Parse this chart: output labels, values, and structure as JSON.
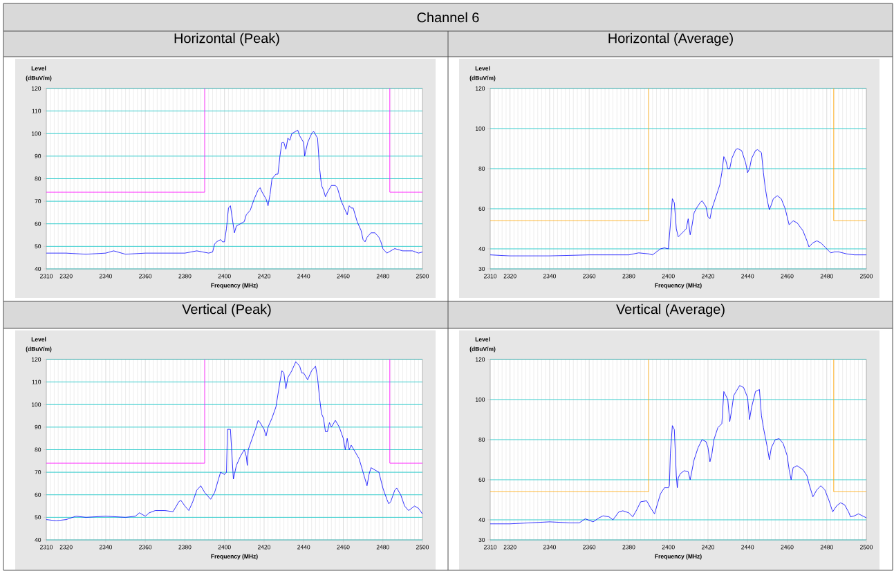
{
  "chart_data": [
    {
      "type": "line",
      "title": "Horizontal (Peak)",
      "annotations": [
        "Channel 6"
      ],
      "xlabel": "Frequency (MHz)",
      "ylabel": "Level (dBuV/m)",
      "xlim": [
        2310,
        2500
      ],
      "ylim": [
        40,
        120
      ],
      "xticks": [
        2310,
        2320,
        2340,
        2360,
        2380,
        2400,
        2420,
        2440,
        2460,
        2480,
        2500
      ],
      "yticks": [
        40,
        50,
        60,
        70,
        80,
        90,
        100,
        110,
        120
      ],
      "grid": true,
      "series": [
        {
          "color": "#0000ff",
          "x": [
            2310,
            2320,
            2330,
            2340,
            2344,
            2350,
            2360,
            2370,
            2380,
            2386,
            2392,
            2394,
            2395,
            2396,
            2398,
            2399,
            2400,
            2401,
            2402,
            2403,
            2404,
            2405,
            2406,
            2408,
            2410,
            2411,
            2413,
            2415,
            2417,
            2418,
            2419,
            2421,
            2422,
            2423,
            2424,
            2426,
            2427,
            2428,
            2429,
            2430,
            2431,
            2432,
            2433,
            2434,
            2436,
            2437,
            2438,
            2440,
            2440.5,
            2442,
            2444,
            2445,
            2447,
            2448,
            2449,
            2450,
            2451,
            2452,
            2454,
            2456,
            2457,
            2459,
            2461,
            2462,
            2463,
            2464,
            2465,
            2467,
            2469,
            2470,
            2471,
            2472,
            2474,
            2476,
            2478,
            2479,
            2480,
            2482,
            2484,
            2486,
            2490,
            2495,
            2498,
            2500
          ],
          "values": [
            47,
            47,
            46.5,
            47,
            48,
            46.5,
            47,
            47,
            47,
            48,
            47,
            47.5,
            51,
            52,
            53,
            52,
            52,
            58,
            67,
            68,
            62,
            56,
            59,
            60,
            61,
            64,
            66,
            71,
            75,
            76,
            74,
            71,
            68,
            73,
            80,
            82,
            82,
            90,
            96,
            96,
            93,
            98,
            97,
            100,
            101,
            101.5,
            99,
            96,
            90,
            96,
            100,
            101,
            98,
            85,
            77,
            75,
            72,
            74,
            77,
            77,
            76,
            70,
            66,
            64,
            68,
            67,
            67,
            61,
            57,
            53,
            52,
            54,
            56,
            56,
            54,
            52,
            49,
            47,
            48,
            49,
            48,
            48,
            47,
            47.5
          ]
        },
        {
          "color": "#ff00ff",
          "x": [
            2310,
            2390,
            2390
          ],
          "values": [
            74,
            74,
            120
          ]
        },
        {
          "color": "#ff00ff",
          "x": [
            2483.5,
            2483.5,
            2500
          ],
          "values": [
            120,
            74,
            74
          ]
        }
      ]
    },
    {
      "type": "line",
      "title": "Horizontal (Average)",
      "xlabel": "Frequency (MHz)",
      "ylabel": "Level (dBuV/m)",
      "xlim": [
        2310,
        2500
      ],
      "ylim": [
        30,
        120
      ],
      "xticks": [
        2310,
        2320,
        2340,
        2360,
        2380,
        2400,
        2420,
        2440,
        2460,
        2480,
        2500
      ],
      "yticks": [
        30,
        40,
        60,
        80,
        100,
        120
      ],
      "grid": true,
      "series": [
        {
          "color": "#0000ff",
          "x": [
            2310,
            2320,
            2340,
            2360,
            2380,
            2385,
            2390,
            2392,
            2396,
            2398,
            2400,
            2401,
            2402,
            2403,
            2404,
            2405,
            2406,
            2408,
            2409,
            2410,
            2411,
            2412,
            2413,
            2414,
            2416,
            2417,
            2419,
            2420,
            2421,
            2422,
            2424,
            2425,
            2426,
            2427,
            2428,
            2429,
            2430,
            2431,
            2432,
            2434,
            2435,
            2437,
            2438,
            2439,
            2440,
            2441,
            2442,
            2444,
            2445,
            2447,
            2448,
            2449,
            2450,
            2451,
            2452,
            2453,
            2455,
            2457,
            2459,
            2460,
            2461,
            2463,
            2465,
            2468,
            2470,
            2471,
            2473,
            2475,
            2477,
            2479,
            2481,
            2482,
            2484,
            2486,
            2490,
            2494,
            2500
          ],
          "values": [
            37,
            36.5,
            36.5,
            37,
            37,
            38,
            37.5,
            37,
            40,
            40.5,
            40,
            52,
            65,
            63,
            50,
            46,
            47,
            49,
            50,
            55,
            47,
            52,
            58,
            60,
            63,
            64,
            61,
            56,
            55,
            60,
            66,
            69,
            72,
            78,
            86,
            84,
            80,
            80,
            85,
            89.5,
            90,
            89,
            86,
            83,
            78,
            80,
            85,
            89,
            89.5,
            88,
            78,
            70,
            64,
            59.5,
            62,
            65,
            66.5,
            65,
            60,
            56,
            52,
            54,
            53,
            49,
            44,
            41,
            43,
            44,
            43,
            41,
            39,
            38,
            38.5,
            38.5,
            37.5,
            37,
            37
          ]
        },
        {
          "color": "#ffa500",
          "x": [
            2310,
            2390,
            2390
          ],
          "values": [
            54,
            54,
            120
          ]
        },
        {
          "color": "#ffa500",
          "x": [
            2483.5,
            2483.5,
            2500
          ],
          "values": [
            120,
            54,
            54
          ]
        }
      ]
    },
    {
      "type": "line",
      "title": "Vertical (Peak)",
      "xlabel": "Frequency (MHz)",
      "ylabel": "Level (dBuV/m)",
      "xlim": [
        2310,
        2500
      ],
      "ylim": [
        40,
        120
      ],
      "xticks": [
        2310,
        2320,
        2340,
        2360,
        2380,
        2400,
        2420,
        2440,
        2460,
        2480,
        2500
      ],
      "yticks": [
        40,
        50,
        60,
        70,
        80,
        90,
        100,
        110,
        120
      ],
      "grid": true,
      "series": [
        {
          "color": "#0000ff",
          "x": [
            2310,
            2315,
            2320,
            2325,
            2330,
            2340,
            2350,
            2355,
            2357,
            2360,
            2362,
            2365,
            2370,
            2374,
            2377,
            2378,
            2380,
            2382,
            2384,
            2386,
            2388,
            2390,
            2392,
            2393,
            2395,
            2397,
            2398,
            2400,
            2401,
            2401.5,
            2403,
            2404,
            2404.5,
            2406,
            2408,
            2410,
            2411,
            2411.5,
            2412,
            2414,
            2416,
            2417,
            2418,
            2420,
            2421,
            2422,
            2424,
            2426,
            2428,
            2429,
            2430,
            2431,
            2432,
            2434,
            2435,
            2436,
            2438,
            2439,
            2440,
            2442,
            2444,
            2446,
            2447,
            2448,
            2449,
            2450,
            2451,
            2452,
            2453,
            2454,
            2456,
            2458,
            2460,
            2461,
            2462,
            2463,
            2464,
            2466,
            2468,
            2470,
            2471,
            2472,
            2473,
            2474,
            2476,
            2478,
            2480,
            2482,
            2483,
            2484,
            2486,
            2487,
            2489,
            2491,
            2493,
            2496,
            2498,
            2500
          ],
          "values": [
            49,
            48.5,
            49,
            50.5,
            50,
            50.5,
            50,
            50.5,
            52,
            50.5,
            52,
            53,
            53,
            52.5,
            57,
            57.5,
            55,
            53,
            57,
            62,
            64,
            61,
            59,
            58,
            61,
            67,
            70,
            69,
            70,
            89,
            89,
            74,
            67,
            73,
            77,
            80,
            77,
            73,
            80,
            85,
            90,
            93,
            92,
            89,
            86,
            90,
            94,
            99,
            110,
            115,
            114,
            107,
            112,
            115,
            117,
            119,
            117,
            114,
            114,
            111,
            115,
            117,
            112,
            103,
            96,
            94,
            88,
            88,
            92,
            90,
            93,
            90,
            85,
            80,
            85,
            80,
            82,
            79,
            76,
            70,
            67,
            64,
            69,
            72,
            71,
            70,
            63,
            58,
            56,
            57,
            62,
            63,
            60,
            55,
            53,
            55,
            54,
            51.5
          ]
        },
        {
          "color": "#ff00ff",
          "x": [
            2310,
            2390,
            2390
          ],
          "values": [
            74,
            74,
            120
          ]
        },
        {
          "color": "#ff00ff",
          "x": [
            2483.5,
            2483.5,
            2500
          ],
          "values": [
            120,
            74,
            74
          ]
        }
      ]
    },
    {
      "type": "line",
      "title": "Vertical (Average)",
      "xlabel": "Frequency (MHz)",
      "ylabel": "Level (dBuV/m)",
      "xlim": [
        2310,
        2500
      ],
      "ylim": [
        30,
        120
      ],
      "xticks": [
        2310,
        2320,
        2340,
        2360,
        2380,
        2400,
        2420,
        2440,
        2460,
        2480,
        2500
      ],
      "yticks": [
        30,
        40,
        60,
        80,
        100,
        120
      ],
      "grid": true,
      "series": [
        {
          "color": "#0000ff",
          "x": [
            2310,
            2320,
            2330,
            2340,
            2350,
            2355,
            2358,
            2362,
            2365,
            2367,
            2370,
            2372,
            2375,
            2377,
            2380,
            2382,
            2384,
            2386,
            2389,
            2391,
            2393,
            2396,
            2398,
            2400,
            2400.5,
            2401,
            2402,
            2403,
            2404,
            2404.5,
            2405,
            2406,
            2408,
            2410,
            2411,
            2413,
            2415,
            2417,
            2419,
            2420,
            2421,
            2422,
            2423,
            2425,
            2427,
            2428,
            2430,
            2431,
            2432,
            2433,
            2436,
            2438,
            2440,
            2441,
            2442,
            2444,
            2446,
            2447,
            2448,
            2450,
            2451,
            2452,
            2454,
            2456,
            2458,
            2460,
            2461,
            2462,
            2463,
            2465,
            2468,
            2470,
            2471,
            2473,
            2475,
            2477,
            2479,
            2481,
            2483,
            2485,
            2487,
            2489,
            2491,
            2492,
            2494,
            2496,
            2498,
            2500
          ],
          "values": [
            38,
            38,
            38.5,
            39,
            38.5,
            38.5,
            40.5,
            39,
            41,
            42,
            41.5,
            40,
            44,
            44.5,
            43.5,
            41.5,
            45,
            49,
            49.5,
            46,
            43,
            53,
            56,
            56,
            57,
            73,
            87,
            85,
            62,
            56,
            61,
            63,
            64.5,
            64,
            60,
            70,
            76,
            80,
            79,
            76,
            69,
            73,
            80,
            86,
            88,
            104,
            100,
            89,
            95,
            102,
            107,
            106,
            101,
            90,
            96,
            104,
            105,
            92,
            86,
            76,
            70,
            76,
            80,
            80.5,
            78,
            72,
            65,
            60,
            66,
            67,
            65,
            62,
            58,
            51.5,
            55,
            57,
            55,
            50,
            44,
            47,
            48.5,
            47.5,
            44,
            41.5,
            42,
            43,
            42,
            41
          ]
        },
        {
          "color": "#ffa500",
          "x": [
            2310,
            2390,
            2390
          ],
          "values": [
            54,
            54,
            120
          ]
        },
        {
          "color": "#ffa500",
          "x": [
            2483.5,
            2483.5,
            2500
          ],
          "values": [
            120,
            54,
            54
          ]
        }
      ]
    }
  ]
}
